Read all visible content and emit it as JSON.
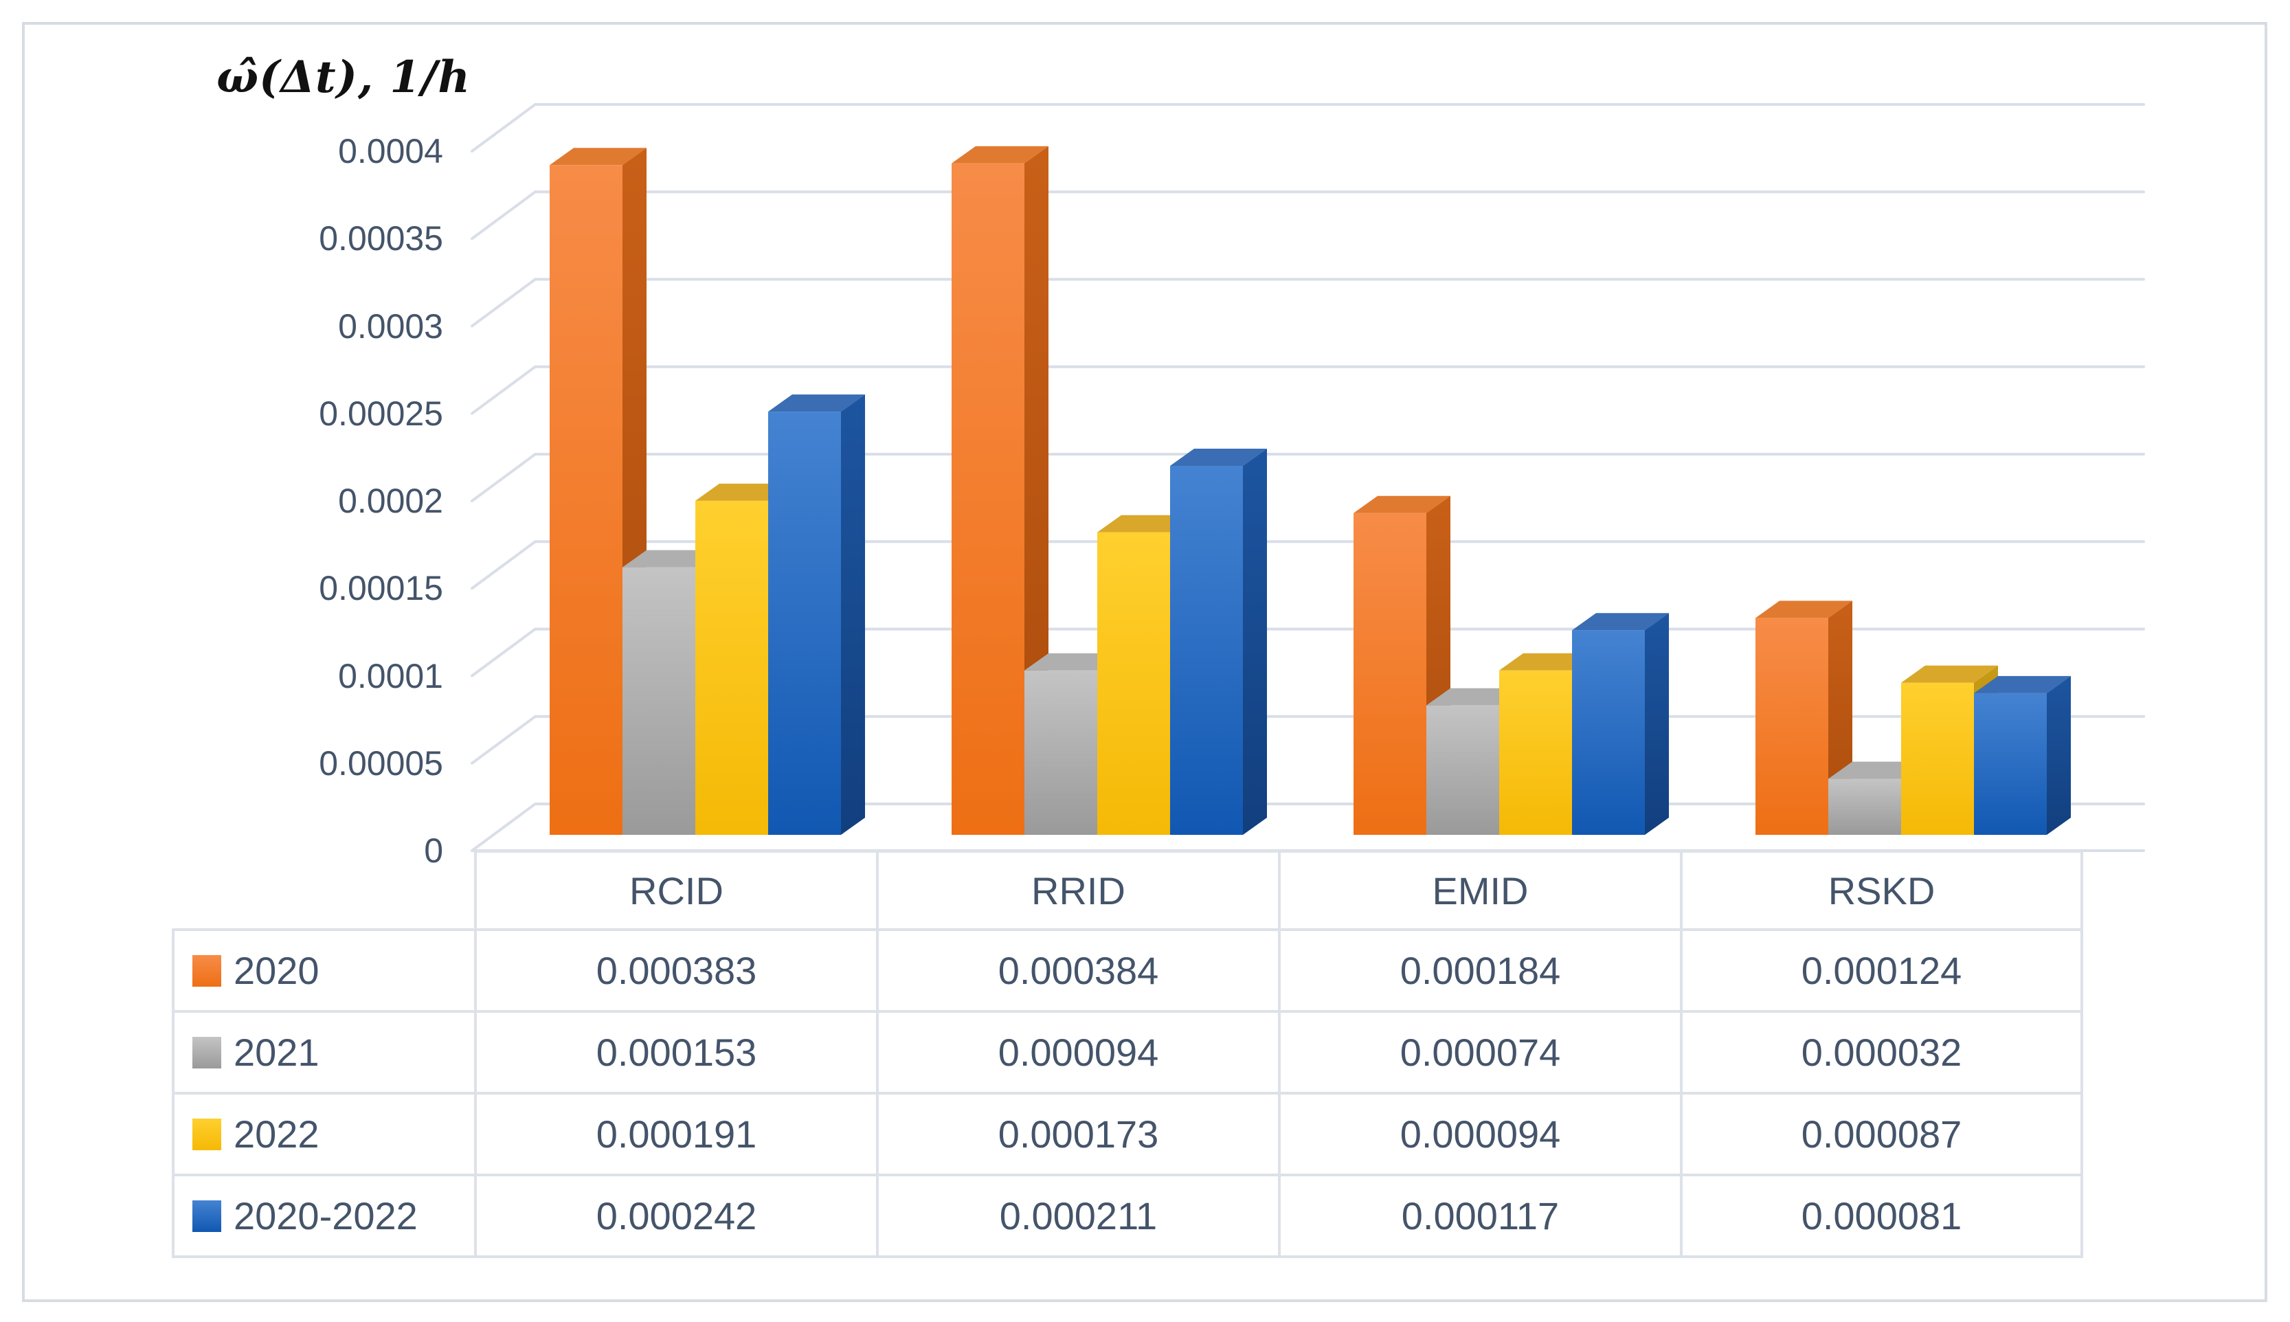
{
  "chart": {
    "y_axis_title": "ω̂(Δt), 1/h",
    "y_tick_labels": [
      "0.0004",
      "0.00035",
      "0.0003",
      "0.00025",
      "0.0002",
      "0.00015",
      "0.0001",
      "0.00005",
      "0"
    ]
  },
  "chart_data": {
    "type": "bar",
    "style": "3d-clustered-column",
    "title": "",
    "y_axis_title": "ω̂(Δt), 1/h",
    "categories": [
      "RCID",
      "RRID",
      "EMID",
      "RSKD"
    ],
    "series": [
      {
        "name": "2020",
        "values": [
          0.000383,
          0.000384,
          0.000184,
          0.000124
        ]
      },
      {
        "name": "2021",
        "values": [
          0.000153,
          9.4e-05,
          7.4e-05,
          3.2e-05
        ]
      },
      {
        "name": "2022",
        "values": [
          0.000191,
          0.000173,
          9.4e-05,
          8.7e-05
        ]
      },
      {
        "name": "2020-2022",
        "values": [
          0.000242,
          0.000211,
          0.000117,
          8.1e-05
        ]
      }
    ],
    "ylim": [
      0,
      0.0004
    ],
    "ytick_step": 5e-05,
    "grid": true,
    "legend_position": "data-table-left",
    "data_table_shown": true
  },
  "colors": {
    "text": "#44546A",
    "gridline": "#d9dee8",
    "table_border": "#dde1e8",
    "series": [
      {
        "name": "2020",
        "front_top": "#F78C48",
        "front_bottom": "#EE6F14",
        "top": "#E07A30",
        "side_top": "#C96018",
        "side_bottom": "#A94B0C"
      },
      {
        "name": "2021",
        "front_top": "#C4C4C4",
        "front_bottom": "#9A9A9A",
        "top": "#AFAFAF",
        "side_top": "#8E8E8E",
        "side_bottom": "#7C7C7C"
      },
      {
        "name": "2022",
        "front_top": "#FFD02E",
        "front_bottom": "#F5B906",
        "top": "#D9A82A",
        "side_top": "#C89B16",
        "side_bottom": "#B0850C"
      },
      {
        "name": "2020-2022",
        "front_top": "#4583D2",
        "front_bottom": "#1158B2",
        "top": "#3A6DB3",
        "side_top": "#1D55A0",
        "side_bottom": "#123F7E"
      }
    ]
  }
}
